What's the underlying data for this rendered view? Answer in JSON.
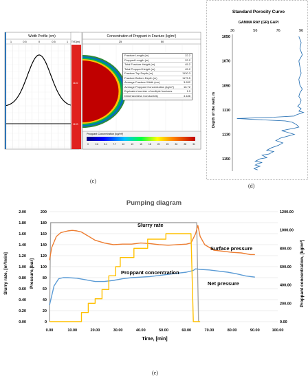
{
  "panel_c": {
    "width_title": "Width Profile (cm)",
    "width_ticks": [
      "1",
      "0.5",
      "0",
      "0.5",
      "1"
    ],
    "tvd_label": "TVD(m)",
    "depth_labels": [
      "1110",
      "1120"
    ],
    "conc_title": "Concentration of Proppant in Fracture (kg/m²)",
    "conc_ticks": [
      "25",
      "50"
    ],
    "table": [
      {
        "label": "Fracture Length (m)",
        "value": "22.2"
      },
      {
        "label": "Propped Length (m)",
        "value": "22.2"
      },
      {
        "label": "Total Fracture Height (m)",
        "value": "45.2"
      },
      {
        "label": "Total Propped Height (m)",
        "value": "45.2"
      },
      {
        "label": "Fracture Top Depth (m)",
        "value": "1130.3"
      },
      {
        "label": "Fracture Bottom Depth (m)",
        "value": "1175.5"
      },
      {
        "label": "Average Fracture Width (cm)",
        "value": "3.632"
      },
      {
        "label": "Average Proppant Concentration (kg/m²)",
        "value": "16.72"
      },
      {
        "label": "Equivalent number of multiple fractures",
        "value": "1.0"
      },
      {
        "label": "Dimensionless Conductivity",
        "value": "4.186"
      }
    ],
    "scale_title": "Proppant Concentration (kg/m²)",
    "scale_ticks": [
      "0",
      "2.6",
      "5.1",
      "7.7",
      "10",
      "13",
      "15",
      "18",
      "20",
      "23",
      "26",
      "28",
      "31"
    ],
    "caption": "(c)"
  },
  "panel_d": {
    "title": "Standard Porosity Curve",
    "subtitle": "GAMMA RAY (GR) GAPI",
    "ylabel": "Depth of the well, m",
    "caption": "(d)"
  },
  "panel_e": {
    "caption": "(e)"
  },
  "chart_data": [
    {
      "type": "line",
      "title": "Standard Porosity Curve",
      "xlabel": "GAMMA RAY (GR) GAPI",
      "ylabel": "Depth of the well, m",
      "xlim": [
        36,
        96
      ],
      "xticks": [
        36,
        56,
        76,
        96
      ],
      "ylim": [
        1050,
        1160
      ],
      "yticks": [
        1050,
        1070,
        1090,
        1110,
        1130,
        1150
      ],
      "y_inverted": true,
      "series": [
        {
          "x": [
            94,
            96,
            95,
            97,
            94,
            95,
            96,
            94,
            95,
            97,
            95,
            94,
            96,
            95,
            93,
            96,
            94,
            98,
            95,
            92,
            90,
            72,
            40,
            60,
            82,
            88,
            90,
            92,
            94,
            90,
            84,
            79,
            83,
            90,
            86,
            78,
            74,
            80,
            76,
            70,
            66,
            72,
            68,
            62,
            66,
            60,
            56,
            62,
            58,
            56,
            60,
            57,
            55,
            58
          ],
          "y": [
            1050,
            1055,
            1060,
            1065,
            1070,
            1075,
            1080,
            1085,
            1090,
            1093,
            1096,
            1099,
            1102,
            1105,
            1107,
            1109,
            1111,
            1112,
            1113,
            1114,
            1115,
            1116,
            1117,
            1118,
            1119,
            1120,
            1121,
            1122,
            1124,
            1125,
            1126,
            1127,
            1128,
            1130,
            1131,
            1133,
            1135,
            1137,
            1139,
            1141,
            1143,
            1144,
            1146,
            1147,
            1149,
            1150,
            1152,
            1153,
            1154,
            1155,
            1156,
            1157,
            1158,
            1159
          ]
        }
      ]
    },
    {
      "type": "line",
      "title": "Pumping diagram",
      "xlabel": "Time, [min]",
      "ylabel": "Slurry rate, [m³/min]",
      "ylabel_inner": "Pressure,[bar]",
      "ylabel_right": "Proppant concentration, [kg/m³]",
      "xlim": [
        0,
        100
      ],
      "xticks": [
        "0.00",
        "10.00",
        "20.00",
        "30.00",
        "40.00",
        "50.00",
        "60.00",
        "70.00",
        "80.00",
        "90.00",
        "100.00"
      ],
      "ylim_left": [
        0,
        2.0
      ],
      "yticks_left": [
        "0.00",
        "0.20",
        "0.40",
        "0.60",
        "0.80",
        "1.00",
        "1.20",
        "1.40",
        "1.60",
        "1.80",
        "2.00"
      ],
      "ylim_inner": [
        0,
        200
      ],
      "yticks_inner": [
        "0",
        "20",
        "40",
        "60",
        "80",
        "100",
        "120",
        "140",
        "160",
        "180",
        "200"
      ],
      "ylim_right": [
        0,
        1200
      ],
      "yticks_right": [
        "0.00",
        "200.00",
        "400.00",
        "600.00",
        "800.00",
        "1000.00",
        "1200.00"
      ],
      "series": [
        {
          "name": "Slurry rate",
          "axis": "pressure",
          "color": "#a5a5a5",
          "x": [
            0,
            0.5,
            64.5,
            65.3
          ],
          "y": [
            0,
            180,
            180,
            0
          ]
        },
        {
          "name": "Surface pressure",
          "axis": "pressure",
          "color": "#ed7d31",
          "x": [
            0,
            1,
            3,
            5,
            8,
            10,
            12,
            14,
            16,
            20,
            24,
            28,
            32,
            36,
            40,
            44,
            48,
            52,
            56,
            60,
            62,
            64,
            65,
            66,
            68,
            72,
            76,
            80,
            84,
            88,
            90
          ],
          "y": [
            112,
            135,
            155,
            162,
            165,
            166,
            165,
            163,
            158,
            148,
            143,
            140,
            141,
            141,
            143,
            142,
            140,
            139,
            140,
            141,
            143,
            160,
            175,
            155,
            140,
            130,
            128,
            126,
            125,
            122,
            122
          ]
        },
        {
          "name": "Net pressure",
          "axis": "pressure",
          "color": "#5b9bd5",
          "x": [
            0,
            2,
            4,
            6,
            8,
            12,
            16,
            20,
            24,
            28,
            32,
            36,
            40,
            44,
            48,
            52,
            56,
            60,
            63,
            64,
            66,
            70,
            74,
            78,
            82,
            86,
            90
          ],
          "y": [
            30,
            65,
            78,
            80,
            80,
            79,
            76,
            73,
            73,
            75,
            78,
            80,
            81,
            82,
            84,
            86,
            88,
            90,
            93,
            96,
            95,
            94,
            92,
            90,
            87,
            83,
            81
          ]
        },
        {
          "name": "Proppant concentration",
          "axis": "right",
          "color": "#ffc000",
          "x": [
            0,
            14,
            14,
            17,
            17,
            20,
            20,
            23,
            23,
            26,
            26,
            29,
            29,
            31,
            31,
            37,
            37,
            43,
            43,
            51,
            51,
            62,
            62,
            63,
            63,
            66,
            66
          ],
          "y": [
            0,
            0,
            100,
            100,
            200,
            200,
            250,
            250,
            350,
            350,
            500,
            500,
            600,
            600,
            700,
            700,
            800,
            800,
            900,
            900,
            960,
            960,
            960,
            0,
            0,
            0,
            0
          ]
        }
      ],
      "annotations": [
        "Slurry rate",
        "Surface pressure",
        "Proppant concentration",
        "Net pressure"
      ]
    }
  ]
}
